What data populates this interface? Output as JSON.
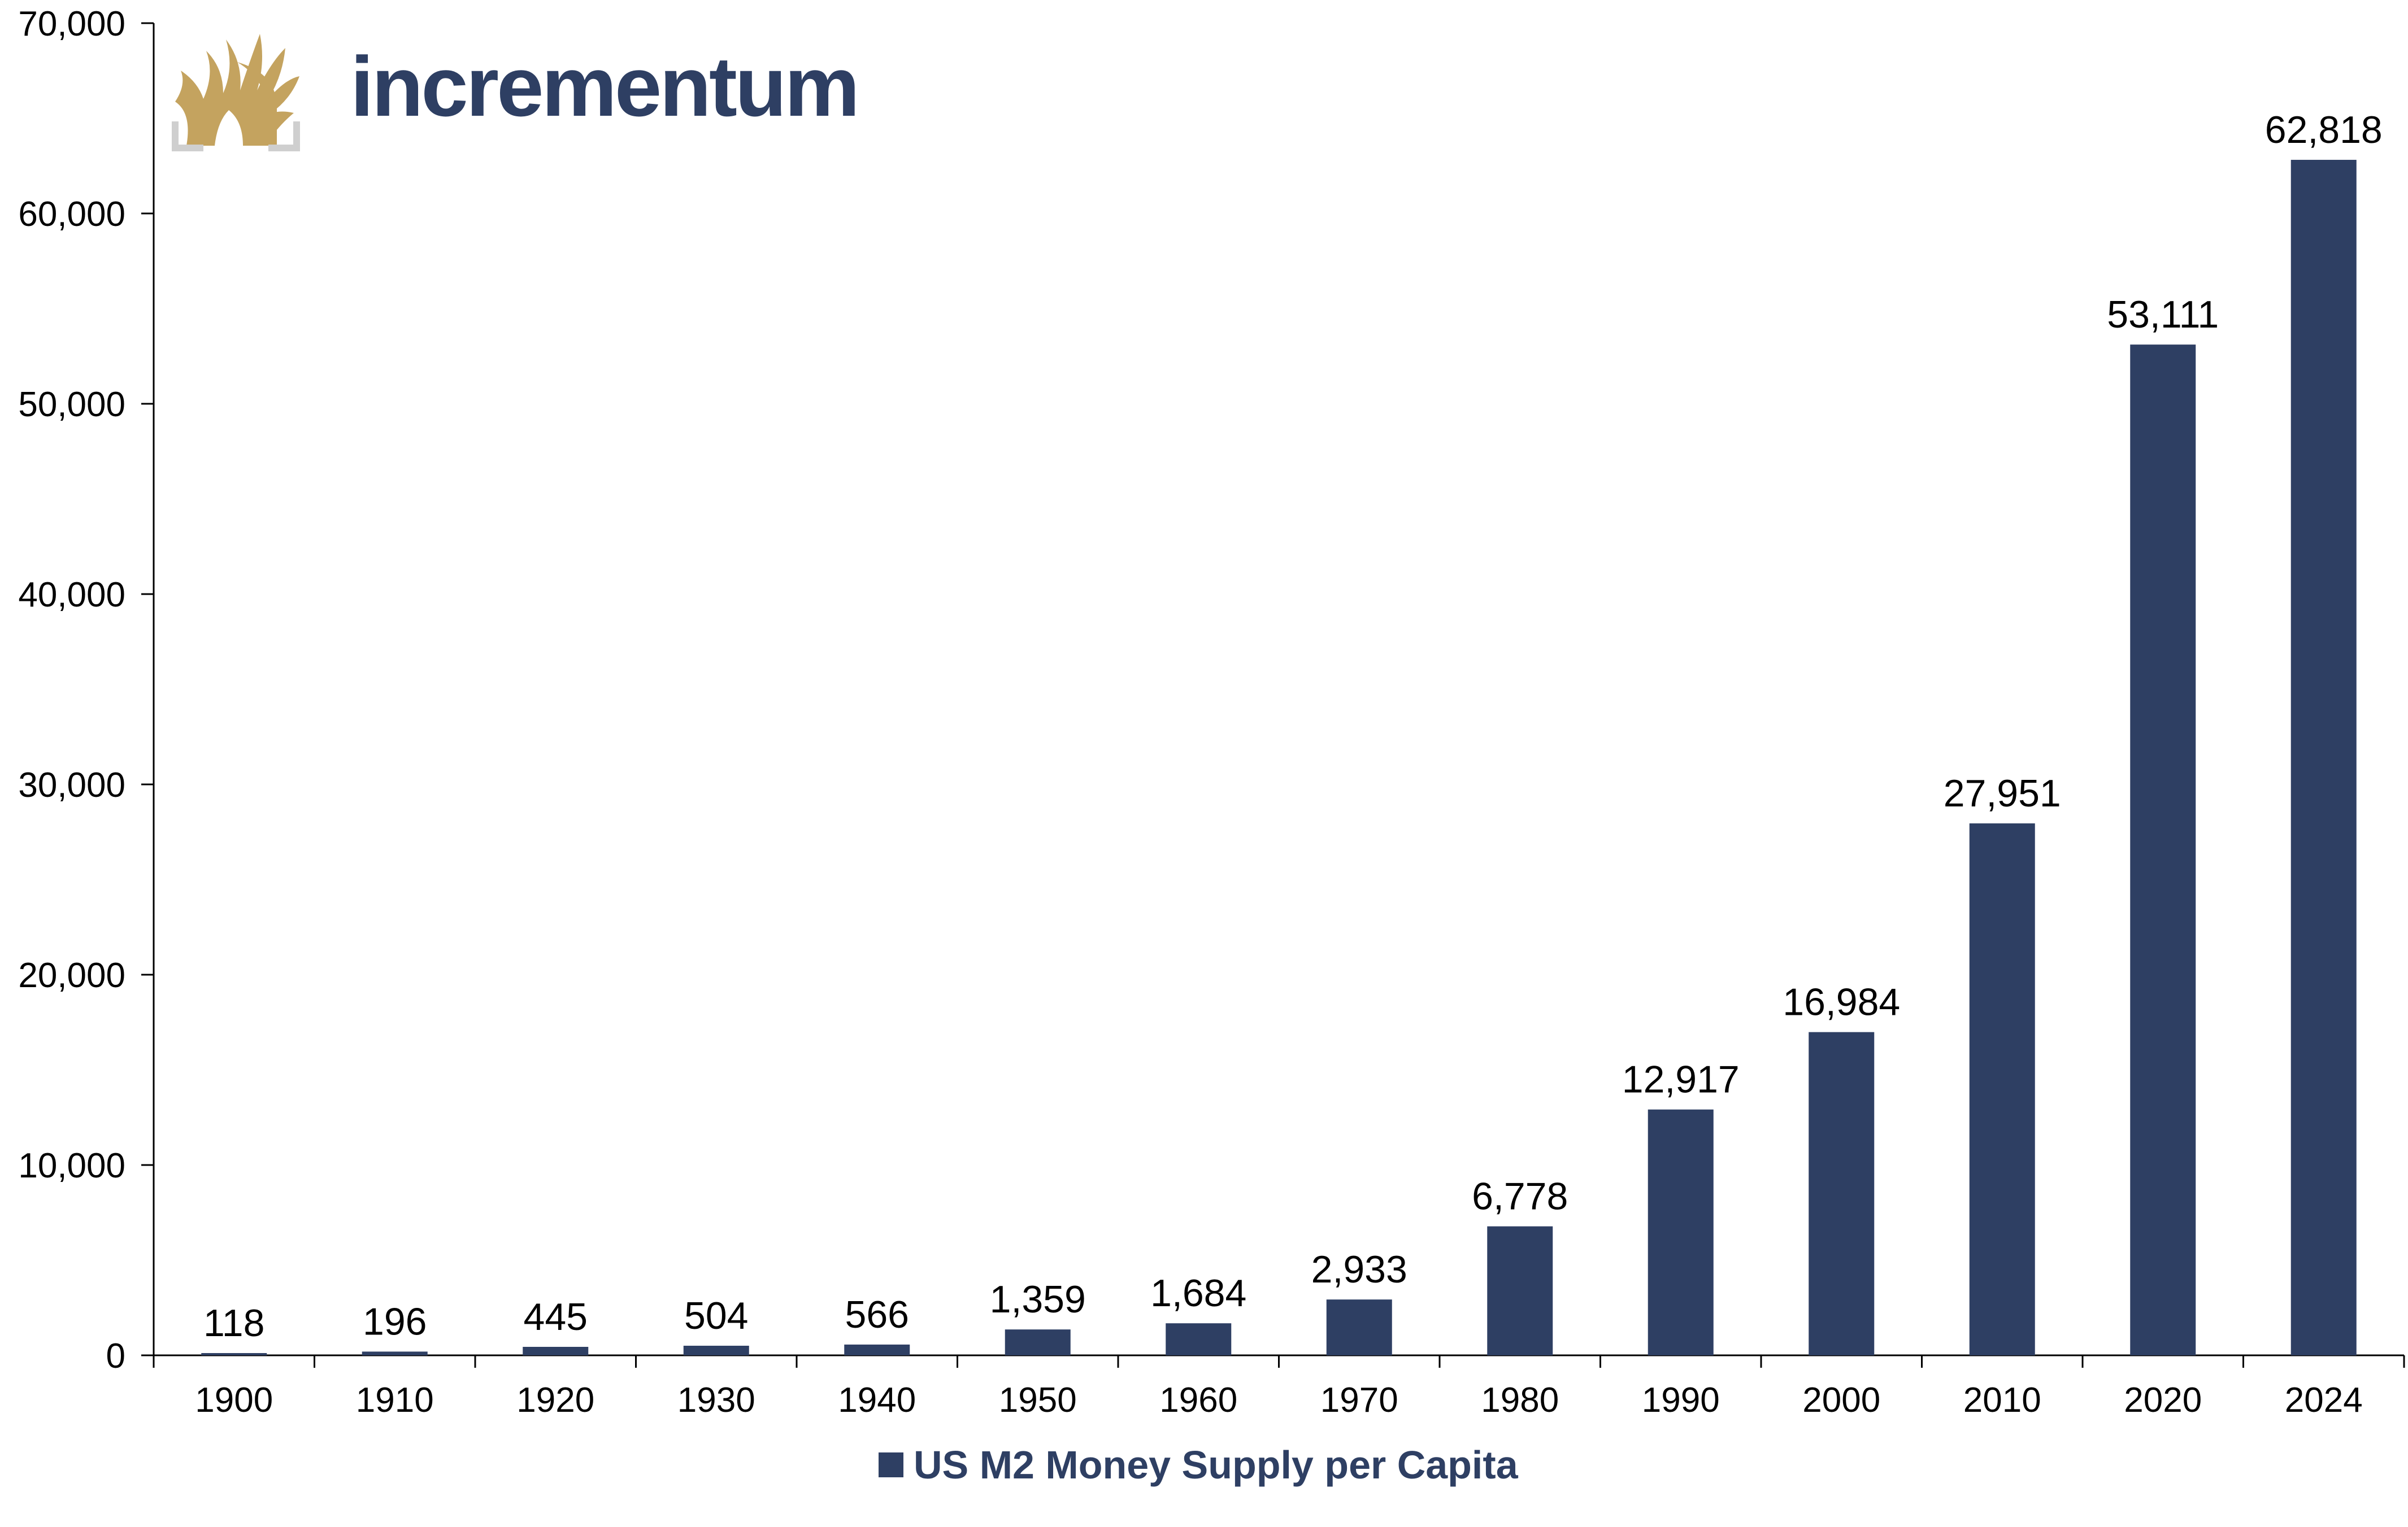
{
  "logo": {
    "text": "incrementum",
    "icon": "tree-icon"
  },
  "colors": {
    "bar": "#2e3f63",
    "logo_gold": "#c4a35f",
    "logo_grey": "#cfcfcf",
    "axis": "#000000"
  },
  "chart_data": {
    "type": "bar",
    "title": "",
    "xlabel": "",
    "ylabel": "",
    "ylim": [
      0,
      70000
    ],
    "yticks": [
      0,
      10000,
      20000,
      30000,
      40000,
      50000,
      60000,
      70000
    ],
    "ytick_labels": [
      "0",
      "10,000",
      "20,000",
      "30,000",
      "40,000",
      "50,000",
      "60,000",
      "70,000"
    ],
    "categories": [
      "1900",
      "1910",
      "1920",
      "1930",
      "1940",
      "1950",
      "1960",
      "1970",
      "1980",
      "1990",
      "2000",
      "2010",
      "2020",
      "2024"
    ],
    "series": [
      {
        "name": "US M2 Money Supply per Capita",
        "values": [
          118,
          196,
          445,
          504,
          566,
          1359,
          1684,
          2933,
          6778,
          12917,
          16984,
          27951,
          53111,
          62818
        ],
        "value_labels": [
          "118",
          "196",
          "445",
          "504",
          "566",
          "1,359",
          "1,684",
          "2,933",
          "6,778",
          "12,917",
          "16,984",
          "27,951",
          "53,111",
          "62,818"
        ]
      }
    ],
    "grid": false,
    "legend_position": "bottom-center"
  }
}
